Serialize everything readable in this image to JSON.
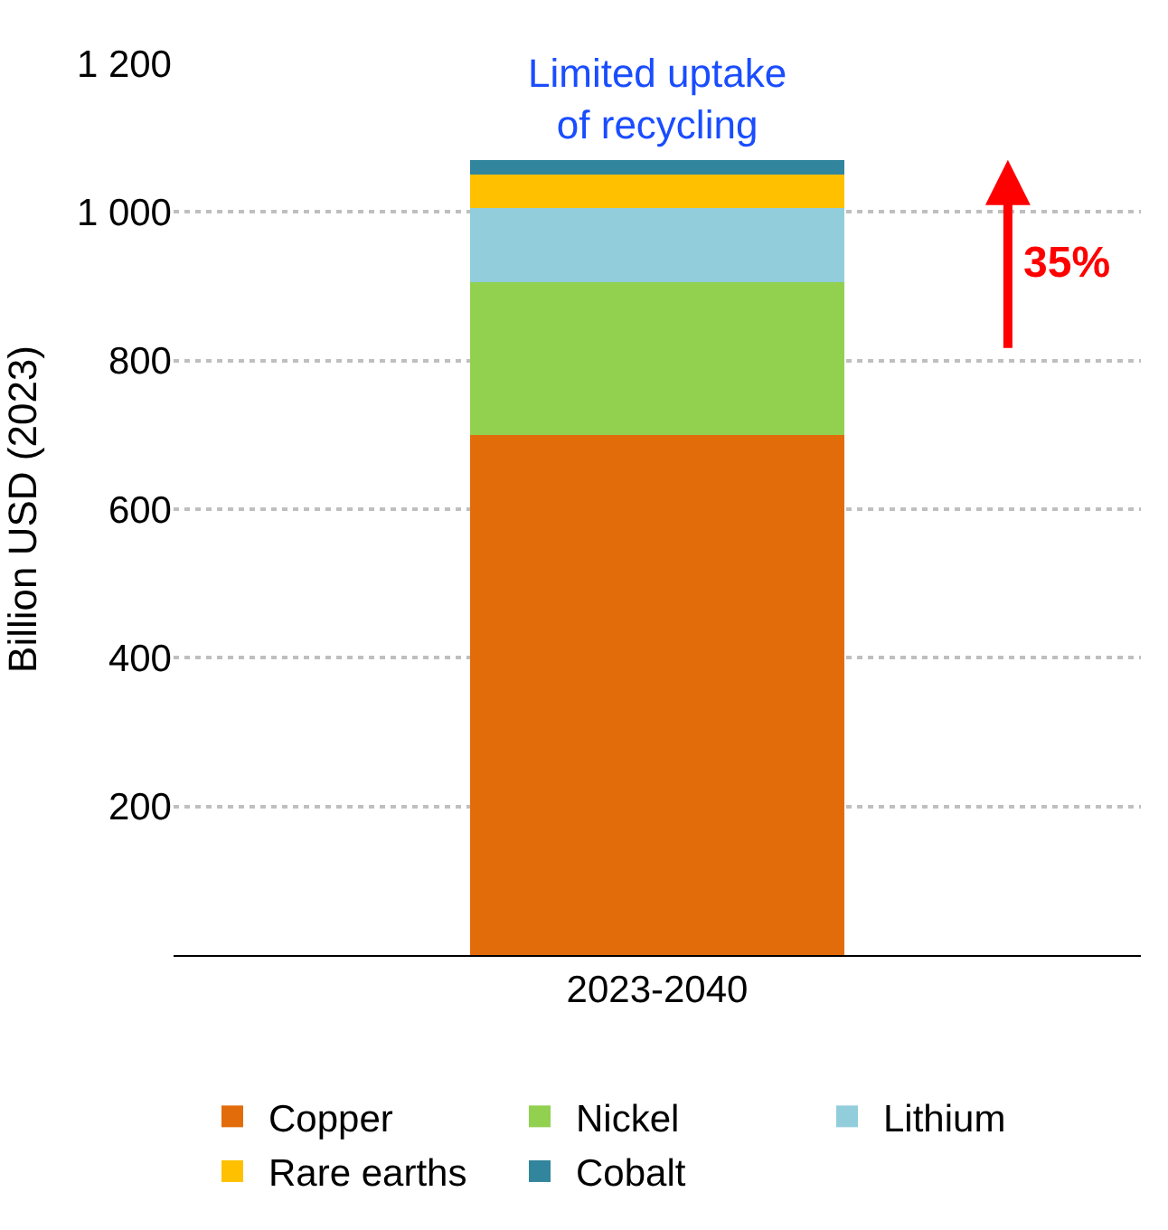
{
  "chart_data": {
    "type": "bar",
    "stacked": true,
    "ylabel": "Billion USD (2023)",
    "categories": [
      "2023-2040"
    ],
    "series": [
      {
        "name": "Copper",
        "color": "#e36c0a",
        "values": [
          700
        ]
      },
      {
        "name": "Nickel",
        "color": "#92d050",
        "values": [
          205
        ]
      },
      {
        "name": "Lithium",
        "color": "#92cddc",
        "values": [
          100
        ]
      },
      {
        "name": "Rare earths",
        "color": "#ffc000",
        "values": [
          45
        ]
      },
      {
        "name": "Cobalt",
        "color": "#31859c",
        "values": [
          20
        ]
      }
    ],
    "ylim": [
      0,
      1200
    ],
    "yticks": [
      200,
      400,
      600,
      {
        "value": 800,
        "label": "800"
      },
      {
        "value": 1000,
        "label": "1 000"
      },
      {
        "value": 1200,
        "label": "1 200"
      }
    ],
    "grid": "y",
    "legend": "bottom",
    "annotations": [
      "Limited uptake\nof recycling",
      "35%"
    ]
  }
}
